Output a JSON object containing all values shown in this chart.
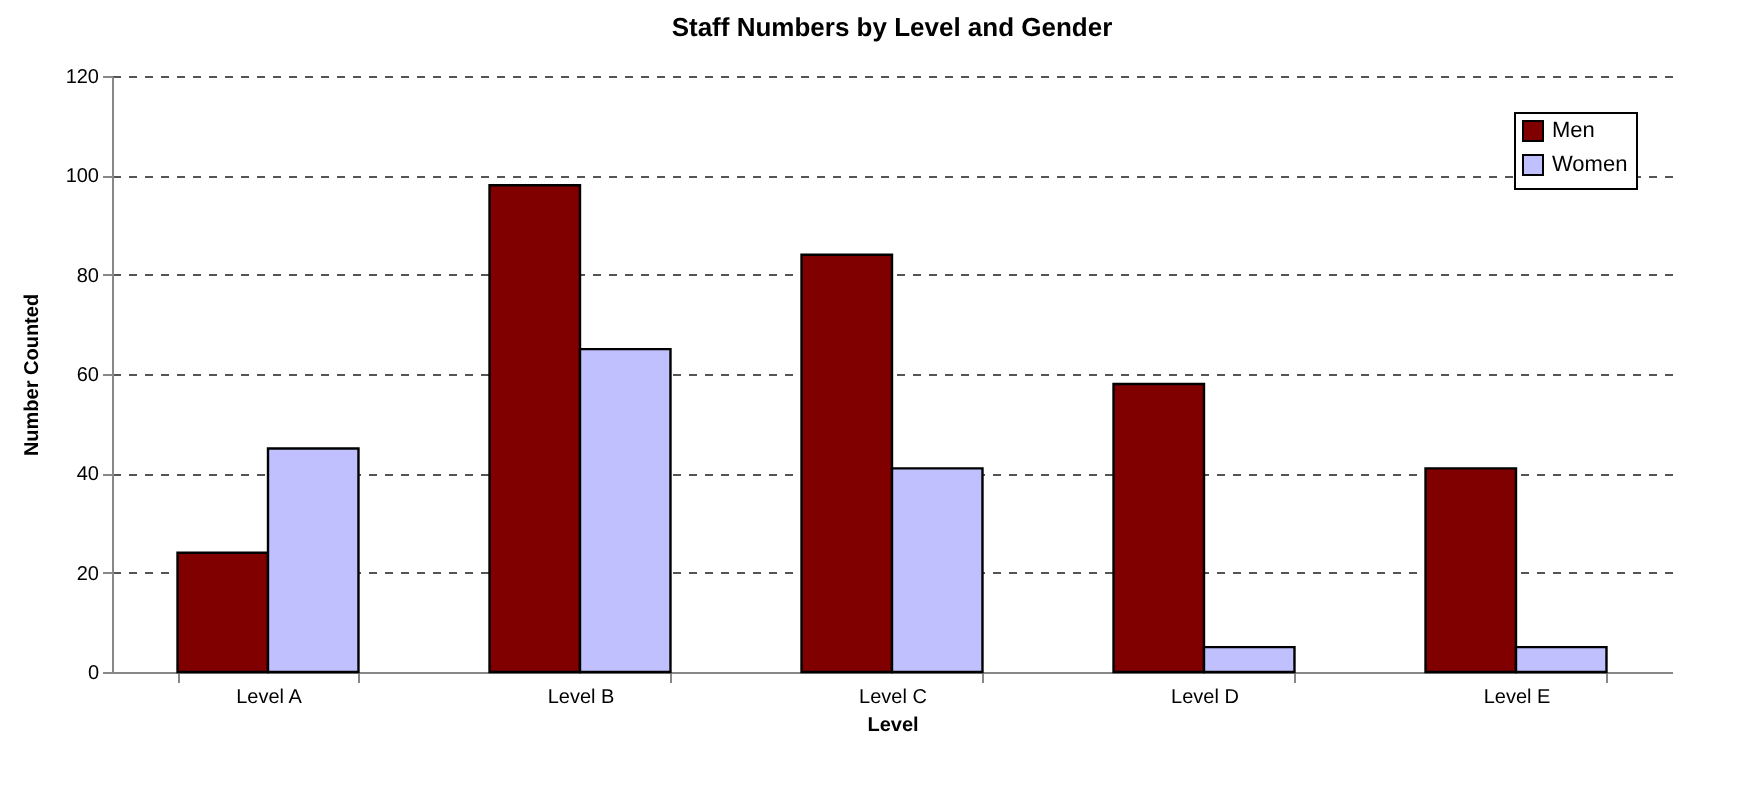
{
  "chart_data": {
    "type": "bar",
    "title": "Staff Numbers by Level and Gender",
    "xlabel": "Level",
    "ylabel": "Number Counted",
    "categories": [
      "Level A",
      "Level B",
      "Level C",
      "Level D",
      "Level E"
    ],
    "series": [
      {
        "name": "Men",
        "color": "#800000",
        "values": [
          24,
          98,
          84,
          58,
          41
        ]
      },
      {
        "name": "Women",
        "color": "#c0c0ff",
        "values": [
          45,
          65,
          41,
          5,
          5
        ]
      }
    ],
    "ylim": [
      0,
      120
    ],
    "yticks": [
      0,
      20,
      40,
      60,
      80,
      100,
      120
    ],
    "grid": "y",
    "legend": "top right"
  }
}
